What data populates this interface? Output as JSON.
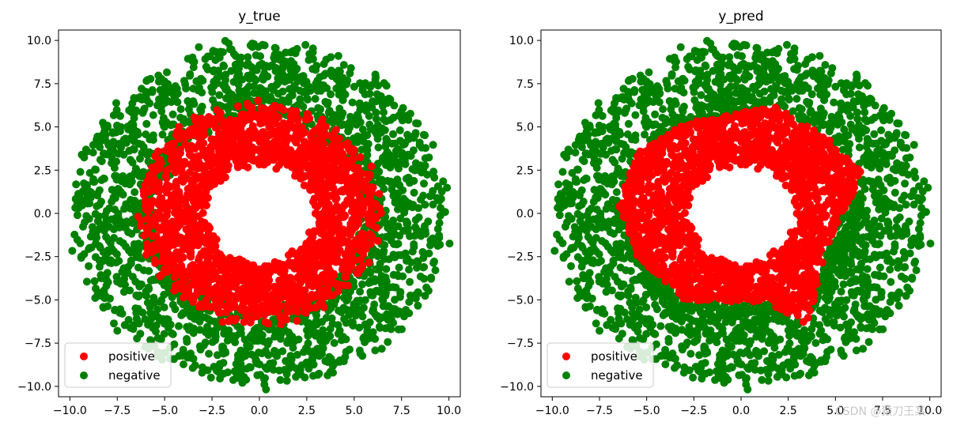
{
  "watermark": "CSDN @猿刀王某",
  "colors": {
    "positive": "#ff0000",
    "negative": "#008000",
    "axis": "#000000",
    "background": "#ffffff"
  },
  "chart_data": [
    {
      "type": "scatter",
      "title": "y_true",
      "xlabel": "",
      "ylabel": "",
      "xlim": [
        -10.6,
        10.6
      ],
      "ylim": [
        -10.6,
        10.6
      ],
      "xticks": [
        -10.0,
        -7.5,
        -5.0,
        -2.5,
        0.0,
        2.5,
        5.0,
        7.5,
        10.0
      ],
      "yticks": [
        -10.0,
        -7.5,
        -5.0,
        -2.5,
        0.0,
        2.5,
        5.0,
        7.5,
        10.0
      ],
      "grid": false,
      "legend": {
        "placement": "lower-left",
        "entries": [
          "positive",
          "negative"
        ]
      },
      "series": [
        {
          "name": "positive",
          "color": "#ff0000",
          "shape": "ring",
          "r_min": 3.0,
          "r_max": 6.3,
          "description_values": {
            "count_approx": 2000
          }
        },
        {
          "name": "negative",
          "color": "#008000",
          "shape": "ring",
          "r_min": 5.5,
          "r_max": 10.0,
          "description_values": {
            "count_approx": 2000
          }
        }
      ]
    },
    {
      "type": "scatter",
      "title": "y_pred",
      "xlabel": "",
      "ylabel": "",
      "xlim": [
        -10.6,
        10.6
      ],
      "ylim": [
        -10.6,
        10.6
      ],
      "xticks": [
        -10.0,
        -7.5,
        -5.0,
        -2.5,
        0.0,
        2.5,
        5.0,
        7.5,
        10.0
      ],
      "yticks": [
        -10.0,
        -7.5,
        -5.0,
        -2.5,
        0.0,
        2.5,
        5.0,
        7.5,
        10.0
      ],
      "grid": false,
      "legend": {
        "placement": "lower-left",
        "entries": [
          "positive",
          "negative"
        ]
      },
      "decision_polygon": [
        [
          -6.5,
          0.5
        ],
        [
          -5.5,
          3.5
        ],
        [
          -3.0,
          5.2
        ],
        [
          1.8,
          6.2
        ],
        [
          4.5,
          4.5
        ],
        [
          6.5,
          2.5
        ],
        [
          4.5,
          -2.0
        ],
        [
          3.5,
          -6.5
        ],
        [
          1.5,
          -5.2
        ],
        [
          -3.0,
          -5.0
        ],
        [
          -5.5,
          -2.5
        ]
      ],
      "series": [
        {
          "name": "positive",
          "color": "#ff0000",
          "shape": "ring-polygon"
        },
        {
          "name": "negative",
          "color": "#008000",
          "shape": "ring-outside-polygon"
        }
      ]
    }
  ]
}
